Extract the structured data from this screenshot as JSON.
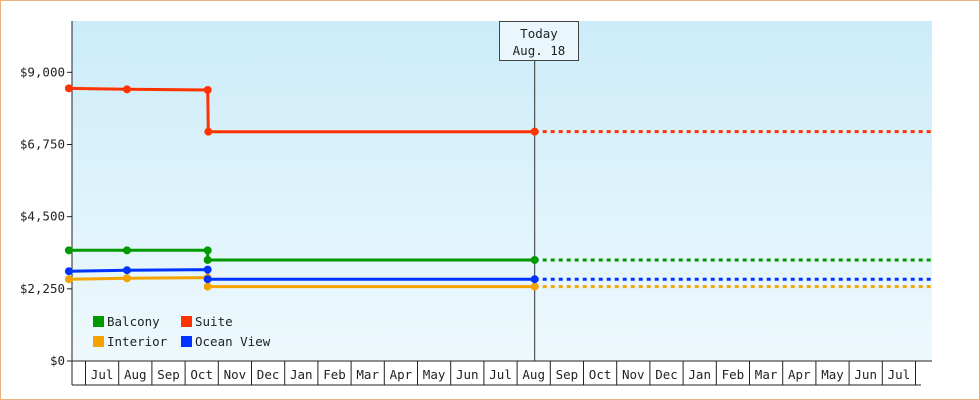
{
  "chart_data": {
    "type": "line",
    "step": true,
    "yticks": [
      "$0",
      "$2,250",
      "$4,500",
      "$6,750",
      "$9,000"
    ],
    "ylim": [
      0,
      10600
    ],
    "ytick_values": [
      0,
      2250,
      4500,
      6750,
      9000
    ],
    "months": [
      "Jul",
      "Aug",
      "Sep",
      "Oct",
      "Nov",
      "Dec",
      "Jan",
      "Feb",
      "Mar",
      "Apr",
      "May",
      "Jun",
      "Jul",
      "Aug",
      "Sep",
      "Oct",
      "Nov",
      "Dec",
      "Jan",
      "Feb",
      "Mar",
      "Apr",
      "May",
      "Jun",
      "Jul"
    ],
    "x_range": [
      0,
      26
    ],
    "today": {
      "line1": "Today",
      "line2": "Aug. 18",
      "x": 14.03
    },
    "projection_end_x": 26,
    "grid": false,
    "legend_placement": "bottom-left",
    "series": [
      {
        "name": "Balcony",
        "color": "#009900",
        "points": [
          [
            0,
            3450
          ],
          [
            1.75,
            3450
          ],
          [
            4.18,
            3450
          ],
          [
            4.18,
            3150
          ],
          [
            14.03,
            3150
          ]
        ]
      },
      {
        "name": "Suite",
        "color": "#ff3300",
        "points": [
          [
            0,
            8500
          ],
          [
            1.75,
            8470
          ],
          [
            4.18,
            8450
          ],
          [
            4.2,
            7150
          ],
          [
            14.03,
            7150
          ]
        ]
      },
      {
        "name": "Interior",
        "color": "#f5a300",
        "points": [
          [
            0,
            2550
          ],
          [
            1.75,
            2580
          ],
          [
            4.18,
            2600
          ],
          [
            4.18,
            2320
          ],
          [
            14.03,
            2320
          ]
        ]
      },
      {
        "name": "Ocean View",
        "color": "#0033ff",
        "points": [
          [
            0,
            2800
          ],
          [
            1.75,
            2830
          ],
          [
            4.18,
            2850
          ],
          [
            4.18,
            2550
          ],
          [
            14.03,
            2550
          ]
        ]
      }
    ]
  }
}
